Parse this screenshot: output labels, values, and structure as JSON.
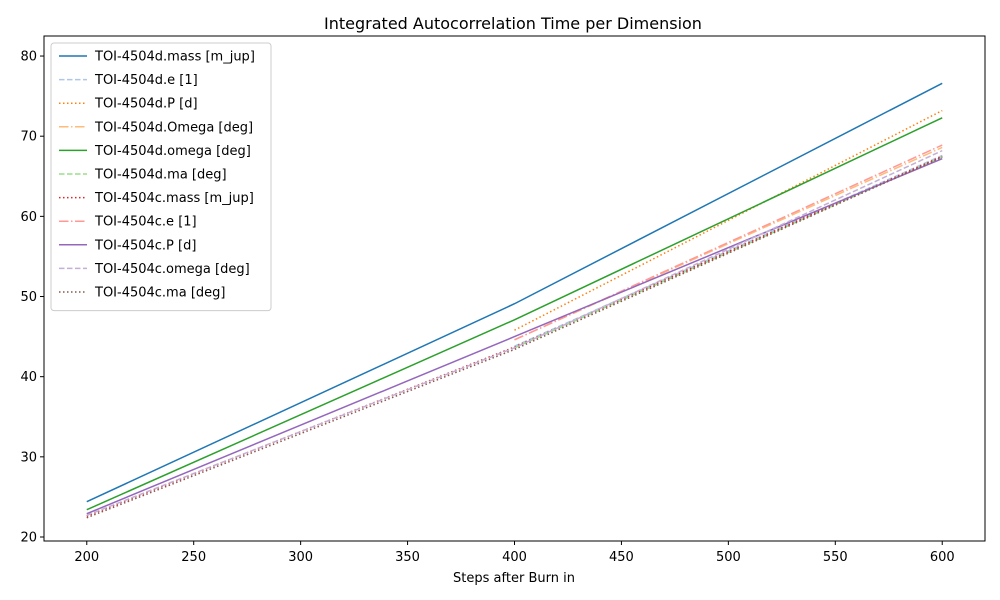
{
  "chart_data": {
    "type": "line",
    "title": "Integrated Autocorrelation Time per Dimension",
    "xlabel": "Steps after Burn in",
    "ylabel": "",
    "xlim": [
      180,
      620
    ],
    "ylim": [
      19.5,
      82.5
    ],
    "xticks": [
      200,
      250,
      300,
      350,
      400,
      450,
      500,
      550,
      600
    ],
    "yticks": [
      20,
      30,
      40,
      50,
      60,
      70,
      80
    ],
    "grid": false,
    "legend_position": "top-left",
    "series": [
      {
        "name": "TOI-4504d.mass [m_jup]",
        "color": "#1f77b4",
        "dash": "solid",
        "alpha": 1.0,
        "x": [
          200,
          400,
          600
        ],
        "y": [
          24.4,
          49.1,
          76.6
        ]
      },
      {
        "name": "TOI-4504d.e [1]",
        "color": "#aec7e8",
        "dash": "dashed",
        "alpha": 1.0,
        "x": [
          400,
          600
        ],
        "y": [
          43.8,
          67.6
        ]
      },
      {
        "name": "TOI-4504d.P [d]",
        "color": "#ff7f0e",
        "dash": "dotted",
        "alpha": 1.0,
        "x": [
          400,
          600
        ],
        "y": [
          45.8,
          73.2
        ]
      },
      {
        "name": "TOI-4504d.Omega [deg]",
        "color": "#ffbb78",
        "dash": "dashdot",
        "alpha": 1.0,
        "x": [
          400,
          600
        ],
        "y": [
          44.6,
          68.6
        ]
      },
      {
        "name": "TOI-4504d.omega [deg]",
        "color": "#2ca02c",
        "dash": "solid",
        "alpha": 1.0,
        "x": [
          200,
          400,
          600
        ],
        "y": [
          23.4,
          47.1,
          72.3
        ]
      },
      {
        "name": "TOI-4504d.ma [deg]",
        "color": "#98df8a",
        "dash": "dashed",
        "alpha": 1.0,
        "x": [
          400,
          600
        ],
        "y": [
          43.6,
          67.4
        ]
      },
      {
        "name": "TOI-4504c.mass [m_jup]",
        "color": "#d62728",
        "dash": "dotted",
        "alpha": 1.0,
        "x": [
          200,
          400,
          600
        ],
        "y": [
          22.6,
          43.7,
          67.5
        ]
      },
      {
        "name": "TOI-4504c.e [1]",
        "color": "#ff9896",
        "dash": "dashdot",
        "alpha": 1.0,
        "x": [
          400,
          600
        ],
        "y": [
          44.6,
          68.9
        ]
      },
      {
        "name": "TOI-4504c.P [d]",
        "color": "#9467bd",
        "dash": "solid",
        "alpha": 1.0,
        "x": [
          200,
          400,
          600
        ],
        "y": [
          22.9,
          45.0,
          67.2
        ]
      },
      {
        "name": "TOI-4504c.omega [deg]",
        "color": "#c5b0d5",
        "dash": "dashed",
        "alpha": 1.0,
        "x": [
          200,
          400,
          600
        ],
        "y": [
          22.7,
          43.6,
          68.2
        ]
      },
      {
        "name": "TOI-4504c.ma [deg]",
        "color": "#8c564b",
        "dash": "dotted",
        "alpha": 1.0,
        "x": [
          200,
          400,
          600
        ],
        "y": [
          22.4,
          43.4,
          67.4
        ]
      }
    ]
  }
}
